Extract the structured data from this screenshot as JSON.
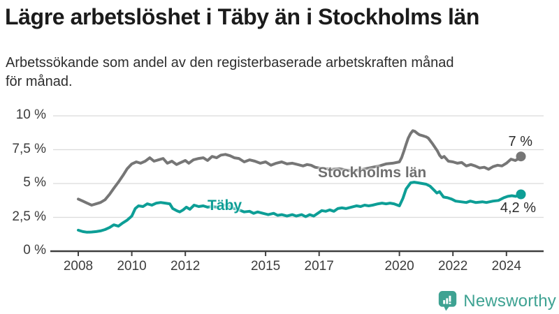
{
  "title": "Lägre arbetslöshet i Täby än i Stockholms län",
  "subtitle_lines": [
    "Arbetssökande som andel av den registerbaserade arbetskraften månad",
    "för månad."
  ],
  "logo": {
    "text": "Newsworthy",
    "color": "#3ea292",
    "icon": "newsworthy-speech-bubble-bar-chart-icon"
  },
  "colors": {
    "stockholm_line": "#767676",
    "taby_line": "#0d9e96",
    "gridline": "#dbdbdb",
    "axis": "#3f3f3f",
    "background": "#ffffff"
  },
  "chart_data": {
    "type": "line",
    "title": "Lägre arbetslöshet i Täby än i Stockholms län",
    "subtitle": "Arbetssökande som andel av den registerbaserade arbetskraften månad för månad.",
    "unit": "%",
    "grid": true,
    "x_range": [
      2008,
      2024.8
    ],
    "ylim": [
      0,
      10
    ],
    "x_axis": {
      "ticks": [
        {
          "value": 2008,
          "label": "2008"
        },
        {
          "value": 2010,
          "label": "2010"
        },
        {
          "value": 2012,
          "label": "2012"
        },
        {
          "value": 2015,
          "label": "2015"
        },
        {
          "value": 2017,
          "label": "2017"
        },
        {
          "value": 2020,
          "label": "2020"
        },
        {
          "value": 2022,
          "label": "2022"
        },
        {
          "value": 2024,
          "label": "2024"
        }
      ]
    },
    "y_axis": {
      "ticks": [
        {
          "value": 0,
          "label": "0 %"
        },
        {
          "value": 2.5,
          "label": "2,5 %"
        },
        {
          "value": 5,
          "label": "5 %"
        },
        {
          "value": 7.5,
          "label": "7,5 %"
        },
        {
          "value": 10,
          "label": "10 %"
        }
      ]
    },
    "series": [
      {
        "name": "Stockholms län",
        "color": "#767676",
        "end_label": "7 %",
        "end_value": 7.0,
        "points": [
          [
            2008.0,
            3.85
          ],
          [
            2008.17,
            3.7
          ],
          [
            2008.33,
            3.55
          ],
          [
            2008.5,
            3.4
          ],
          [
            2008.67,
            3.5
          ],
          [
            2008.83,
            3.6
          ],
          [
            2009.0,
            3.8
          ],
          [
            2009.17,
            4.2
          ],
          [
            2009.33,
            4.65
          ],
          [
            2009.5,
            5.1
          ],
          [
            2009.67,
            5.6
          ],
          [
            2009.83,
            6.1
          ],
          [
            2010.0,
            6.45
          ],
          [
            2010.17,
            6.6
          ],
          [
            2010.33,
            6.5
          ],
          [
            2010.5,
            6.65
          ],
          [
            2010.67,
            6.9
          ],
          [
            2010.83,
            6.65
          ],
          [
            2011.0,
            6.75
          ],
          [
            2011.17,
            6.85
          ],
          [
            2011.33,
            6.5
          ],
          [
            2011.5,
            6.65
          ],
          [
            2011.67,
            6.4
          ],
          [
            2011.83,
            6.55
          ],
          [
            2012.0,
            6.7
          ],
          [
            2012.13,
            6.5
          ],
          [
            2012.3,
            6.75
          ],
          [
            2012.5,
            6.85
          ],
          [
            2012.67,
            6.9
          ],
          [
            2012.83,
            6.7
          ],
          [
            2013.0,
            7.0
          ],
          [
            2013.17,
            6.9
          ],
          [
            2013.33,
            7.1
          ],
          [
            2013.5,
            7.15
          ],
          [
            2013.67,
            7.05
          ],
          [
            2013.83,
            6.9
          ],
          [
            2014.0,
            6.85
          ],
          [
            2014.2,
            6.6
          ],
          [
            2014.4,
            6.75
          ],
          [
            2014.6,
            6.65
          ],
          [
            2014.8,
            6.5
          ],
          [
            2015.0,
            6.6
          ],
          [
            2015.2,
            6.35
          ],
          [
            2015.4,
            6.5
          ],
          [
            2015.6,
            6.6
          ],
          [
            2015.8,
            6.45
          ],
          [
            2016.0,
            6.5
          ],
          [
            2016.2,
            6.4
          ],
          [
            2016.4,
            6.3
          ],
          [
            2016.55,
            6.4
          ],
          [
            2016.7,
            6.35
          ],
          [
            2016.85,
            6.2
          ],
          [
            2017.0,
            6.15
          ],
          [
            2017.25,
            6.1
          ],
          [
            2017.5,
            6.05
          ],
          [
            2017.75,
            6.1
          ],
          [
            2018.0,
            6.0
          ],
          [
            2018.25,
            5.95
          ],
          [
            2018.5,
            6.0
          ],
          [
            2018.75,
            6.1
          ],
          [
            2019.0,
            6.2
          ],
          [
            2019.25,
            6.3
          ],
          [
            2019.5,
            6.45
          ],
          [
            2019.75,
            6.5
          ],
          [
            2020.0,
            6.6
          ],
          [
            2020.08,
            6.9
          ],
          [
            2020.17,
            7.4
          ],
          [
            2020.25,
            7.9
          ],
          [
            2020.33,
            8.35
          ],
          [
            2020.42,
            8.7
          ],
          [
            2020.5,
            8.9
          ],
          [
            2020.58,
            8.85
          ],
          [
            2020.67,
            8.7
          ],
          [
            2020.75,
            8.6
          ],
          [
            2020.83,
            8.55
          ],
          [
            2020.92,
            8.5
          ],
          [
            2021.0,
            8.45
          ],
          [
            2021.08,
            8.35
          ],
          [
            2021.25,
            7.9
          ],
          [
            2021.42,
            7.4
          ],
          [
            2021.5,
            7.1
          ],
          [
            2021.58,
            6.9
          ],
          [
            2021.67,
            7.0
          ],
          [
            2021.83,
            6.65
          ],
          [
            2022.0,
            6.6
          ],
          [
            2022.17,
            6.5
          ],
          [
            2022.33,
            6.55
          ],
          [
            2022.5,
            6.3
          ],
          [
            2022.67,
            6.4
          ],
          [
            2022.83,
            6.3
          ],
          [
            2023.0,
            6.15
          ],
          [
            2023.17,
            6.2
          ],
          [
            2023.33,
            6.05
          ],
          [
            2023.5,
            6.25
          ],
          [
            2023.67,
            6.35
          ],
          [
            2023.83,
            6.3
          ],
          [
            2024.0,
            6.5
          ],
          [
            2024.17,
            6.8
          ],
          [
            2024.33,
            6.7
          ],
          [
            2024.42,
            6.8
          ],
          [
            2024.54,
            7.0
          ]
        ]
      },
      {
        "name": "Täby",
        "color": "#0d9e96",
        "end_label": "4,2 %",
        "end_value": 4.2,
        "points": [
          [
            2008.0,
            1.55
          ],
          [
            2008.17,
            1.45
          ],
          [
            2008.33,
            1.4
          ],
          [
            2008.5,
            1.42
          ],
          [
            2008.67,
            1.45
          ],
          [
            2008.83,
            1.5
          ],
          [
            2009.0,
            1.6
          ],
          [
            2009.17,
            1.75
          ],
          [
            2009.33,
            1.95
          ],
          [
            2009.5,
            1.85
          ],
          [
            2009.67,
            2.1
          ],
          [
            2009.83,
            2.3
          ],
          [
            2010.0,
            2.6
          ],
          [
            2010.13,
            3.15
          ],
          [
            2010.25,
            3.35
          ],
          [
            2010.42,
            3.3
          ],
          [
            2010.58,
            3.5
          ],
          [
            2010.75,
            3.4
          ],
          [
            2010.92,
            3.55
          ],
          [
            2011.08,
            3.6
          ],
          [
            2011.25,
            3.55
          ],
          [
            2011.42,
            3.5
          ],
          [
            2011.53,
            3.15
          ],
          [
            2011.67,
            3.0
          ],
          [
            2011.79,
            2.9
          ],
          [
            2011.92,
            3.05
          ],
          [
            2012.04,
            3.25
          ],
          [
            2012.17,
            3.1
          ],
          [
            2012.33,
            3.4
          ],
          [
            2012.5,
            3.3
          ],
          [
            2012.67,
            3.35
          ],
          [
            2012.83,
            3.25
          ],
          [
            2013.0,
            3.3
          ],
          [
            2013.17,
            3.25
          ],
          [
            2013.33,
            3.35
          ],
          [
            2013.5,
            3.4
          ],
          [
            2013.67,
            3.3
          ],
          [
            2013.83,
            3.15
          ],
          [
            2014.0,
            3.05
          ],
          [
            2014.2,
            2.9
          ],
          [
            2014.4,
            2.95
          ],
          [
            2014.55,
            2.8
          ],
          [
            2014.7,
            2.9
          ],
          [
            2014.9,
            2.8
          ],
          [
            2015.1,
            2.7
          ],
          [
            2015.3,
            2.8
          ],
          [
            2015.45,
            2.65
          ],
          [
            2015.6,
            2.7
          ],
          [
            2015.8,
            2.6
          ],
          [
            2016.0,
            2.7
          ],
          [
            2016.15,
            2.6
          ],
          [
            2016.35,
            2.7
          ],
          [
            2016.5,
            2.55
          ],
          [
            2016.65,
            2.7
          ],
          [
            2016.8,
            2.6
          ],
          [
            2016.95,
            2.8
          ],
          [
            2017.1,
            3.0
          ],
          [
            2017.25,
            2.95
          ],
          [
            2017.4,
            3.05
          ],
          [
            2017.55,
            2.95
          ],
          [
            2017.7,
            3.15
          ],
          [
            2017.85,
            3.2
          ],
          [
            2018.0,
            3.15
          ],
          [
            2018.2,
            3.25
          ],
          [
            2018.4,
            3.35
          ],
          [
            2018.55,
            3.3
          ],
          [
            2018.7,
            3.4
          ],
          [
            2018.85,
            3.35
          ],
          [
            2019.0,
            3.4
          ],
          [
            2019.2,
            3.5
          ],
          [
            2019.35,
            3.55
          ],
          [
            2019.5,
            3.5
          ],
          [
            2019.65,
            3.55
          ],
          [
            2019.8,
            3.5
          ],
          [
            2020.0,
            3.35
          ],
          [
            2020.13,
            3.9
          ],
          [
            2020.25,
            4.6
          ],
          [
            2020.42,
            5.05
          ],
          [
            2020.55,
            5.1
          ],
          [
            2020.7,
            5.05
          ],
          [
            2020.85,
            5.0
          ],
          [
            2021.0,
            4.95
          ],
          [
            2021.15,
            4.8
          ],
          [
            2021.3,
            4.5
          ],
          [
            2021.4,
            4.3
          ],
          [
            2021.5,
            4.4
          ],
          [
            2021.65,
            4.0
          ],
          [
            2021.8,
            3.95
          ],
          [
            2021.95,
            3.85
          ],
          [
            2022.1,
            3.7
          ],
          [
            2022.3,
            3.65
          ],
          [
            2022.5,
            3.6
          ],
          [
            2022.65,
            3.7
          ],
          [
            2022.85,
            3.6
          ],
          [
            2023.1,
            3.65
          ],
          [
            2023.25,
            3.6
          ],
          [
            2023.5,
            3.7
          ],
          [
            2023.7,
            3.75
          ],
          [
            2023.9,
            3.95
          ],
          [
            2024.05,
            4.05
          ],
          [
            2024.2,
            4.1
          ],
          [
            2024.35,
            4.05
          ],
          [
            2024.54,
            4.2
          ]
        ]
      }
    ]
  }
}
